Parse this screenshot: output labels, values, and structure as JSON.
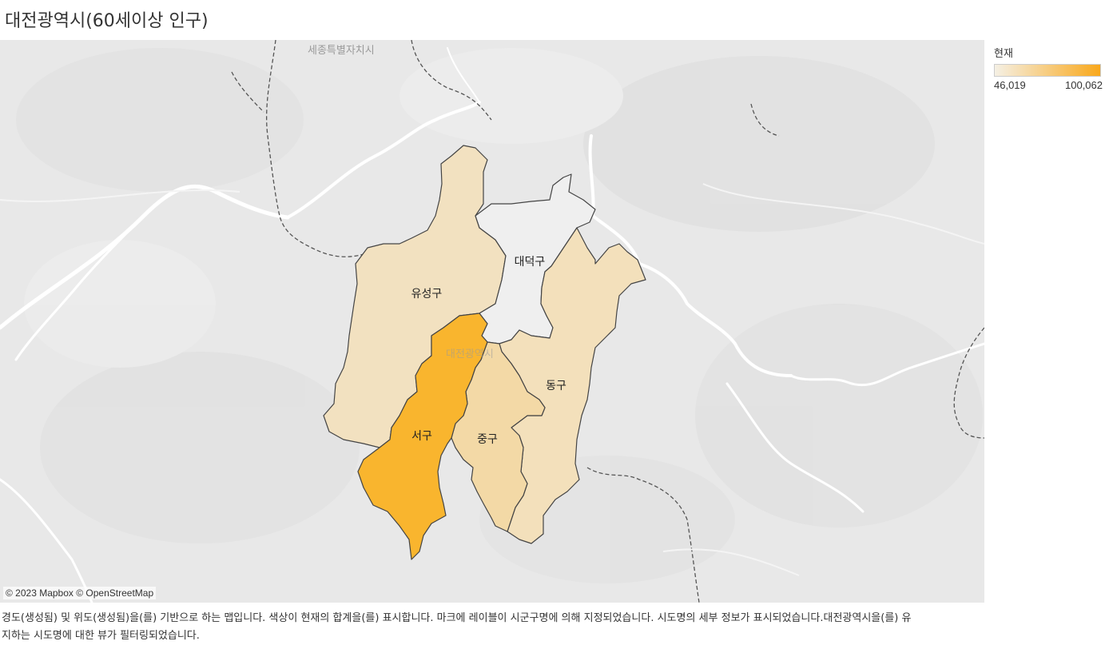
{
  "title": "대전광역시(60세이상 인구)",
  "legend": {
    "title": "현재",
    "min_label": "46,019",
    "max_label": "100,062",
    "color_low": "#f5f0e4",
    "color_high": "#f9a81b"
  },
  "map": {
    "attribution": "© 2023 Mapbox © OpenStreetMap",
    "place_labels": {
      "sejong": "세종특별자치시",
      "daejeon": "대전광역시"
    },
    "regions": [
      {
        "id": "yuseong",
        "name": "유성구",
        "fill": "#f2e1c0"
      },
      {
        "id": "daedeok",
        "name": "대덕구",
        "fill": "#efefef"
      },
      {
        "id": "dong",
        "name": "동구",
        "fill": "#f3e0bb"
      },
      {
        "id": "jung",
        "name": "중구",
        "fill": "#f3d9a6"
      },
      {
        "id": "seo",
        "name": "서구",
        "fill": "#f9b52e"
      }
    ]
  },
  "caption": "경도(생성됨) 및 위도(생성됨)을(를) 기반으로 하는 맵입니다. 색상이 현재의 합계을(를) 표시합니다. 마크에 레이블이 시군구명에 의해 지정되었습니다. 시도명의 세부 정보가 표시되었습니다.대전광역시을(를) 유지하는 시도명에 대한 뷰가 필터링되었습니다."
}
